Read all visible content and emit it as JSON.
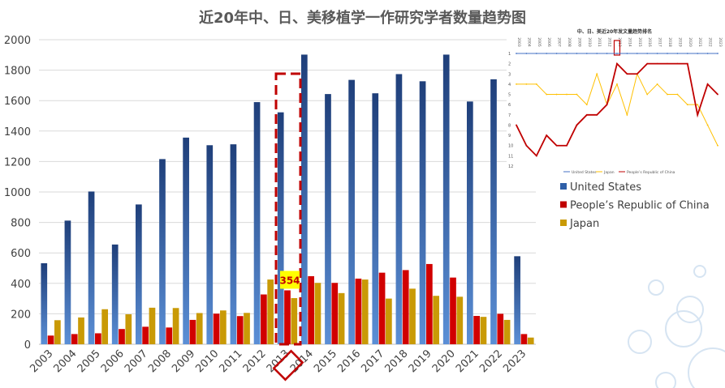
{
  "chart_data": [
    {
      "type": "bar",
      "title": "近20年中、日、美移植学一作研究学者数量趋势图",
      "categories": [
        "2003",
        "2004",
        "2005",
        "2006",
        "2007",
        "2008",
        "2009",
        "2010",
        "2011",
        "2012",
        "2013",
        "2014",
        "2015",
        "2016",
        "2017",
        "2018",
        "2019",
        "2020",
        "2021",
        "2022",
        "2023"
      ],
      "series": [
        {
          "name": "United States",
          "color": "#2f5fa8",
          "values": [
            532,
            812,
            1003,
            655,
            918,
            1216,
            1357,
            1307,
            1313,
            1590,
            1523,
            1902,
            1643,
            1736,
            1648,
            1774,
            1727,
            1902,
            1594,
            1740,
            578
          ]
        },
        {
          "name": "People’s Republic of China",
          "color": "#c00000",
          "values": [
            57,
            67,
            72,
            100,
            115,
            110,
            160,
            201,
            185,
            327,
            354,
            447,
            403,
            431,
            470,
            487,
            527,
            438,
            186,
            200,
            67
          ]
        },
        {
          "name": "Japan",
          "color": "#c99a06",
          "values": [
            158,
            176,
            230,
            197,
            240,
            238,
            205,
            222,
            206,
            425,
            303,
            403,
            336,
            425,
            300,
            365,
            318,
            312,
            180,
            160,
            44
          ]
        }
      ],
      "ylim": [
        0,
        2000
      ],
      "yticks": [
        0,
        200,
        400,
        600,
        800,
        1000,
        1200,
        1400,
        1600,
        1800,
        2000
      ],
      "highlight": {
        "category": "2013",
        "label": "354"
      },
      "legend": "right"
    },
    {
      "type": "line",
      "title": "中、日、美近20年发文量趋势排名",
      "x": [
        "2003",
        "2004",
        "2005",
        "2006",
        "2007",
        "2008",
        "2009",
        "2010",
        "2011",
        "2012",
        "2013",
        "2014",
        "2015",
        "2016",
        "2017",
        "2018",
        "2019",
        "2020",
        "2021",
        "2022",
        "2023"
      ],
      "highlight_x": "2013",
      "ylim": [
        1,
        12
      ],
      "yticks": [
        "1",
        "2",
        "3",
        "4",
        "5",
        "6",
        "7",
        "8",
        "9",
        "10",
        "11",
        "12"
      ],
      "series": [
        {
          "name": "United States",
          "color": "#4472c4",
          "values": [
            1,
            1,
            1,
            1,
            1,
            1,
            1,
            1,
            1,
            1,
            1,
            1,
            1,
            1,
            1,
            1,
            1,
            1,
            1,
            1,
            1
          ]
        },
        {
          "name": "Japan",
          "color": "#ffc000",
          "values": [
            4,
            4,
            4,
            5,
            5,
            5,
            5,
            6,
            3,
            6,
            4,
            7,
            3,
            5,
            4,
            5,
            5,
            6,
            6,
            8,
            10
          ]
        },
        {
          "name": "People’s Republic of China",
          "color": "#c00000",
          "values": [
            8,
            10,
            11,
            9,
            10,
            10,
            8,
            7,
            7,
            6,
            2,
            3,
            3,
            2,
            2,
            2,
            2,
            2,
            7,
            4,
            5
          ]
        }
      ]
    }
  ]
}
